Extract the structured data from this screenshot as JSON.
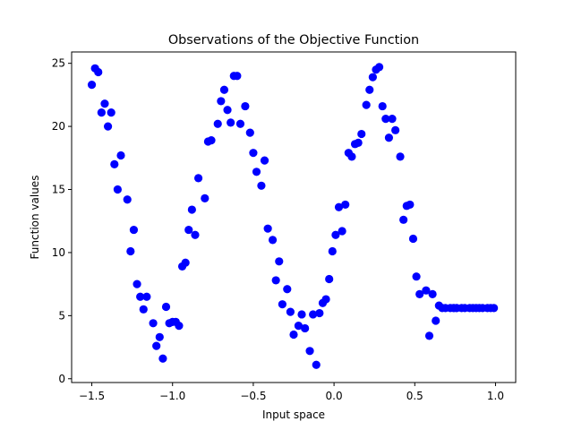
{
  "chart_data": {
    "type": "scatter",
    "title": "Observations of the Objective Function",
    "xlabel": "Input space",
    "ylabel": "Function values",
    "xlim": [
      -1.625,
      1.125
    ],
    "ylim": [
      -0.3,
      25.9
    ],
    "xticks": [
      -1.5,
      -1.0,
      -0.5,
      0.0,
      0.5,
      1.0
    ],
    "xtick_labels": [
      "−1.5",
      "−1.0",
      "−0.5",
      "0.0",
      "0.5",
      "1.0"
    ],
    "yticks": [
      0,
      5,
      10,
      15,
      20,
      25
    ],
    "ytick_labels": [
      "0",
      "5",
      "10",
      "15",
      "20",
      "25"
    ],
    "grid": false,
    "legend": "none",
    "marker_color": "#0000ff",
    "series": [
      {
        "x": [
          -1.5,
          -1.48,
          -1.46,
          -1.44,
          -1.42,
          -1.4,
          -1.38,
          -1.36,
          -1.34,
          -1.32,
          -1.28,
          -1.26,
          -1.24,
          -1.22,
          -1.2,
          -1.18,
          -1.16,
          -1.12,
          -1.1,
          -1.08,
          -1.06,
          -1.04,
          -1.02,
          -1.0,
          -0.98,
          -0.96,
          -0.94,
          -0.92,
          -0.9,
          -0.88,
          -0.86,
          -0.84,
          -0.8,
          -0.78,
          -0.76,
          -0.72,
          -0.7,
          -0.68,
          -0.66,
          -0.64,
          -0.62,
          -0.6,
          -0.58,
          -0.55,
          -0.52,
          -0.5,
          -0.48,
          -0.45,
          -0.43,
          -0.41,
          -0.38,
          -0.36,
          -0.34,
          -0.32,
          -0.29,
          -0.27,
          -0.25,
          -0.22,
          -0.2,
          -0.18,
          -0.15,
          -0.13,
          -0.11,
          -0.09,
          -0.07,
          -0.05,
          -0.03,
          -0.01,
          0.01,
          0.03,
          0.05,
          0.07,
          0.09,
          0.11,
          0.13,
          0.15,
          0.17,
          0.2,
          0.22,
          0.24,
          0.26,
          0.28,
          0.3,
          0.32,
          0.34,
          0.36,
          0.38,
          0.41,
          0.43,
          0.45,
          0.47,
          0.49,
          0.51,
          0.53,
          0.57,
          0.59,
          0.61,
          0.63,
          0.65,
          0.67,
          0.69,
          0.72,
          0.74,
          0.76,
          0.79,
          0.81,
          0.84,
          0.86,
          0.88,
          0.9,
          0.92,
          0.95,
          0.97,
          0.99
        ],
        "y": [
          23.3,
          24.6,
          24.3,
          21.1,
          21.8,
          20.0,
          21.1,
          17.0,
          15.0,
          17.7,
          14.2,
          10.1,
          11.8,
          7.5,
          6.5,
          5.5,
          6.5,
          4.4,
          2.6,
          3.3,
          1.6,
          5.7,
          4.4,
          4.5,
          4.5,
          4.2,
          8.9,
          9.2,
          11.8,
          13.4,
          11.4,
          15.9,
          14.3,
          18.8,
          18.9,
          20.2,
          22.0,
          22.9,
          21.3,
          20.3,
          24.0,
          24.0,
          20.2,
          21.6,
          19.5,
          17.9,
          16.4,
          15.3,
          17.3,
          11.9,
          11.0,
          7.8,
          9.3,
          5.9,
          7.1,
          5.3,
          3.5,
          4.2,
          5.1,
          4.0,
          2.2,
          5.1,
          1.1,
          5.2,
          6.0,
          6.3,
          7.9,
          10.1,
          11.4,
          13.6,
          11.7,
          13.8,
          17.9,
          17.6,
          18.6,
          18.7,
          19.4,
          21.7,
          22.9,
          23.9,
          24.5,
          24.7,
          21.6,
          20.6,
          19.1,
          20.6,
          19.7,
          17.6,
          12.6,
          13.7,
          13.8,
          11.1,
          8.1,
          6.7,
          7.0,
          3.4,
          6.7,
          4.6,
          5.8,
          5.6,
          5.6,
          5.6,
          5.6,
          5.6,
          5.6,
          5.6,
          5.6,
          5.6,
          5.6,
          5.6,
          5.6,
          5.6,
          5.6,
          5.6
        ]
      }
    ]
  }
}
